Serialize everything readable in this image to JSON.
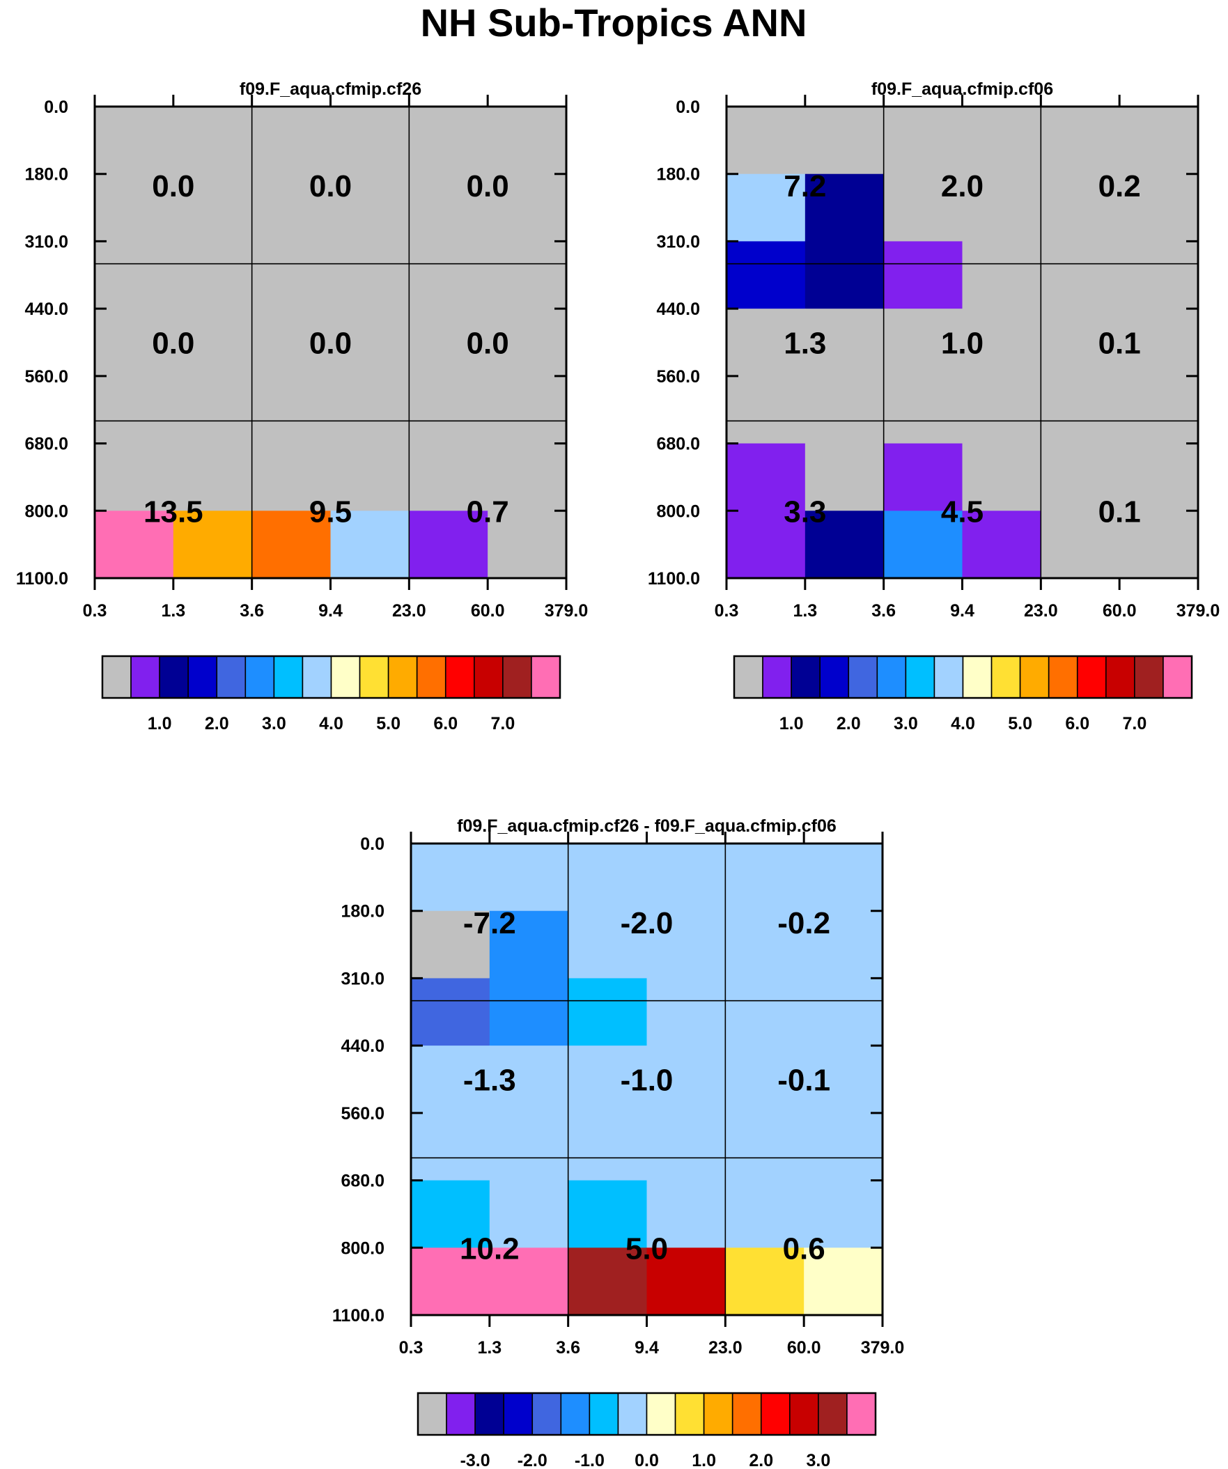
{
  "title": "NH Sub-Tropics ANN",
  "palette": [
    "#c0c0c0",
    "#8120ee",
    "#000094",
    "#0000cc",
    "#4066e0",
    "#1e8eff",
    "#00bfff",
    "#a2d2ff",
    "#ffffc8",
    "#ffe033",
    "#ffab00",
    "#ff6f00",
    "#ff0000",
    "#c80000",
    "#a02020",
    "#ff6eb4"
  ],
  "chart_data": [
    {
      "type": "heatmap",
      "title": "f09.F_aqua.cfmip.cf26",
      "xlabel": "",
      "ylabel": "",
      "x_ticks": [
        "0.3",
        "1.3",
        "3.6",
        "9.4",
        "23.0",
        "60.0",
        "379.0"
      ],
      "y_ticks": [
        "0.0",
        "180.0",
        "310.0",
        "440.0",
        "560.0",
        "680.0",
        "800.0",
        "1100.0"
      ],
      "fine_cells_top_to_bottom": [
        [
          0,
          0,
          0,
          0,
          0,
          0
        ],
        [
          0,
          0,
          0,
          0,
          0,
          0
        ],
        [
          0,
          0,
          0,
          0,
          0,
          0
        ],
        [
          0,
          0,
          0,
          0,
          0,
          0
        ],
        [
          0,
          0,
          0,
          0,
          0,
          0
        ],
        [
          0,
          0,
          0,
          0,
          0,
          0
        ],
        [
          15,
          10,
          11,
          7,
          1,
          0
        ]
      ],
      "box_values_top_to_bottom": [
        [
          "0.0",
          "0.0",
          "0.0"
        ],
        [
          "0.0",
          "0.0",
          "0.0"
        ],
        [
          "13.5",
          "9.5",
          "0.7"
        ]
      ],
      "colorbar": {
        "labels": [
          "1.0",
          "2.0",
          "3.0",
          "4.0",
          "5.0",
          "6.0",
          "7.0"
        ]
      }
    },
    {
      "type": "heatmap",
      "title": "f09.F_aqua.cfmip.cf06",
      "xlabel": "",
      "ylabel": "",
      "x_ticks": [
        "0.3",
        "1.3",
        "3.6",
        "9.4",
        "23.0",
        "60.0",
        "379.0"
      ],
      "y_ticks": [
        "0.0",
        "180.0",
        "310.0",
        "440.0",
        "560.0",
        "680.0",
        "800.0",
        "1100.0"
      ],
      "fine_cells_top_to_bottom": [
        [
          0,
          0,
          0,
          0,
          0,
          0
        ],
        [
          7,
          2,
          0,
          0,
          0,
          0
        ],
        [
          3,
          2,
          1,
          0,
          0,
          0
        ],
        [
          0,
          0,
          0,
          0,
          0,
          0
        ],
        [
          0,
          0,
          0,
          0,
          0,
          0
        ],
        [
          1,
          0,
          1,
          0,
          0,
          0
        ],
        [
          1,
          2,
          5,
          1,
          0,
          0
        ]
      ],
      "box_values_top_to_bottom": [
        [
          "7.2",
          "2.0",
          "0.2"
        ],
        [
          "1.3",
          "1.0",
          "0.1"
        ],
        [
          "3.3",
          "4.5",
          "0.1"
        ]
      ],
      "colorbar": {
        "labels": [
          "1.0",
          "2.0",
          "3.0",
          "4.0",
          "5.0",
          "6.0",
          "7.0"
        ]
      }
    },
    {
      "type": "heatmap",
      "title": "f09.F_aqua.cfmip.cf26 - f09.F_aqua.cfmip.cf06",
      "xlabel": "",
      "ylabel": "",
      "x_ticks": [
        "0.3",
        "1.3",
        "3.6",
        "9.4",
        "23.0",
        "60.0",
        "379.0"
      ],
      "y_ticks": [
        "0.0",
        "180.0",
        "310.0",
        "440.0",
        "560.0",
        "680.0",
        "800.0",
        "1100.0"
      ],
      "fine_cells_top_to_bottom": [
        [
          7,
          7,
          7,
          7,
          7,
          7
        ],
        [
          0,
          5,
          7,
          7,
          7,
          7
        ],
        [
          4,
          5,
          6,
          7,
          7,
          7
        ],
        [
          7,
          7,
          7,
          7,
          7,
          7
        ],
        [
          7,
          7,
          7,
          7,
          7,
          7
        ],
        [
          6,
          7,
          6,
          7,
          7,
          7
        ],
        [
          15,
          15,
          14,
          13,
          9,
          8
        ]
      ],
      "box_values_top_to_bottom": [
        [
          "-7.2",
          "-2.0",
          "-0.2"
        ],
        [
          "-1.3",
          "-1.0",
          "-0.1"
        ],
        [
          "10.2",
          "5.0",
          "0.6"
        ]
      ],
      "colorbar": {
        "labels": [
          "-3.0",
          "-2.0",
          "-1.0",
          "0.0",
          "1.0",
          "2.0",
          "3.0"
        ]
      }
    }
  ]
}
